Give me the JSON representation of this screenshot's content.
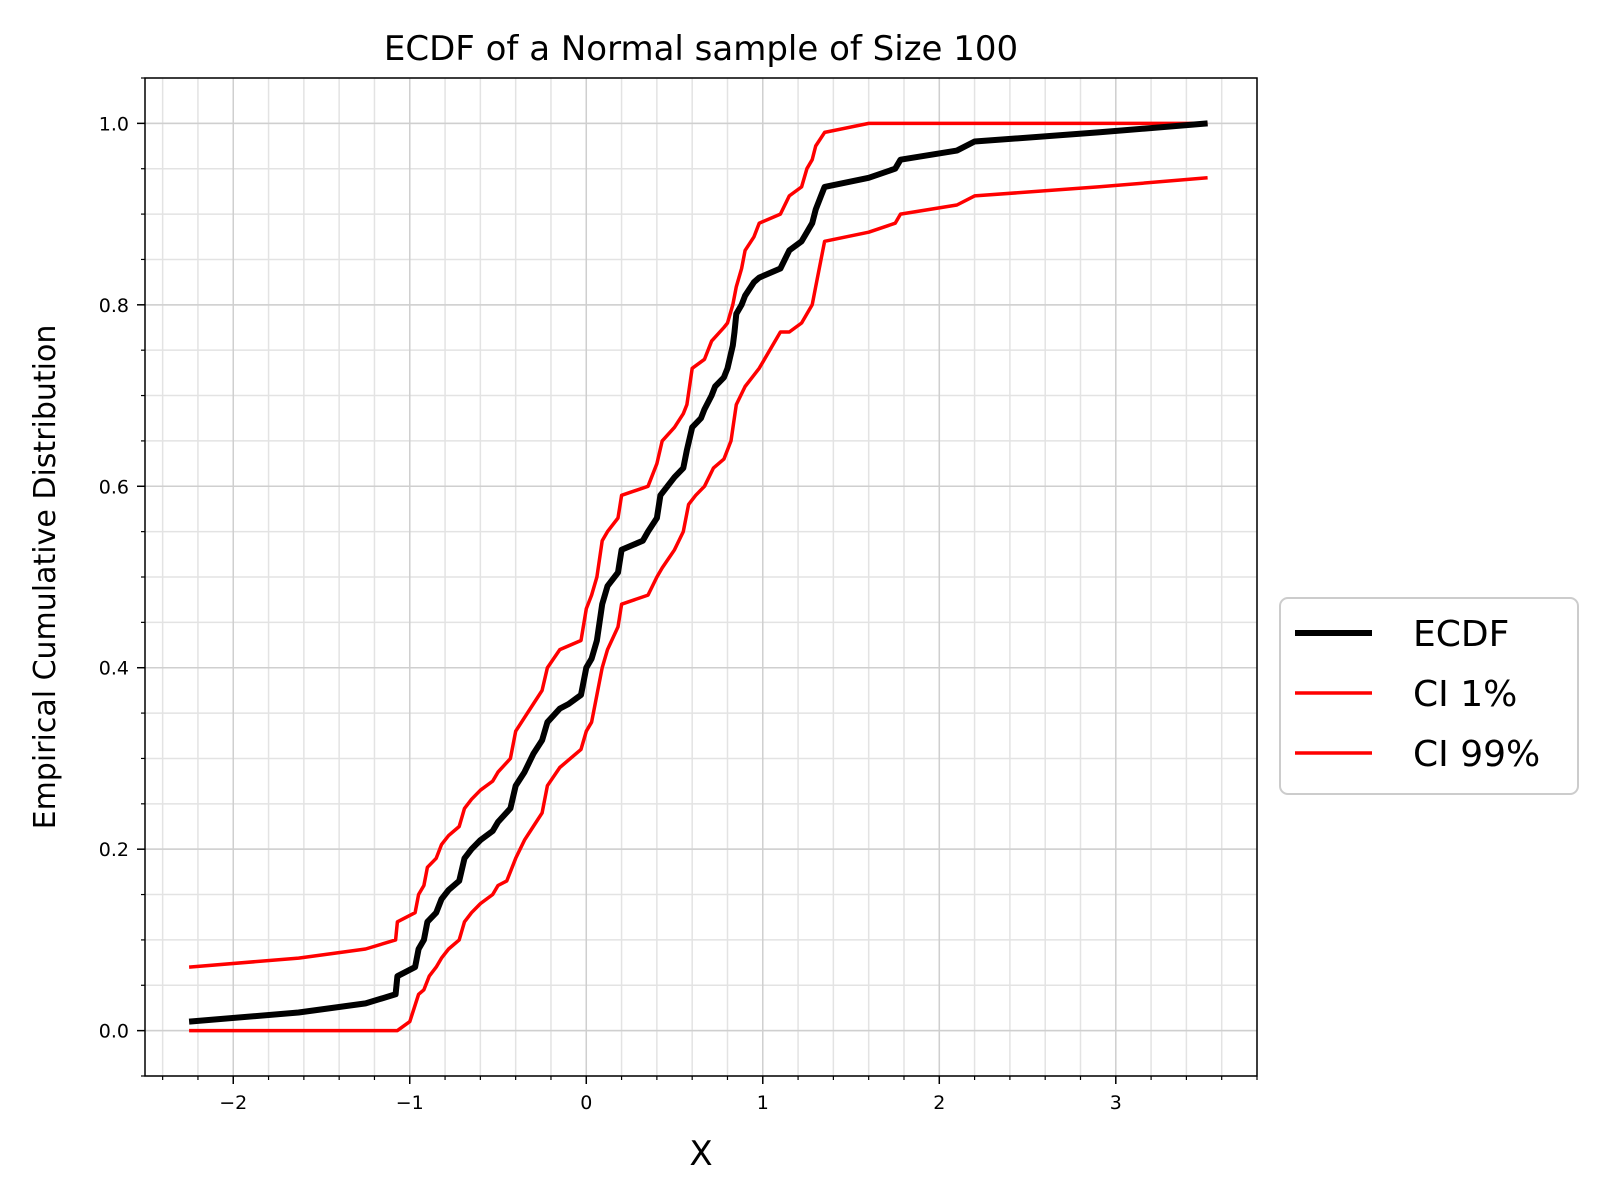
{
  "chart_data": {
    "type": "line",
    "title": "ECDF of a Normal sample of Size 100",
    "xlabel": "X",
    "ylabel": "Empirical Cumulative Distribution",
    "xlim": [
      -2.5,
      3.8
    ],
    "ylim": [
      -0.05,
      1.05
    ],
    "x_ticks": [
      -2,
      -1,
      0,
      1,
      2,
      3
    ],
    "x_tick_labels": [
      "−2",
      "−1",
      "0",
      "1",
      "2",
      "3"
    ],
    "y_ticks": [
      0.0,
      0.2,
      0.4,
      0.6,
      0.8,
      1.0
    ],
    "y_tick_labels": [
      "0.0",
      "0.2",
      "0.4",
      "0.6",
      "0.8",
      "1.0"
    ],
    "grid": "major and minor",
    "legend_placement": "center-right, outside plot",
    "series": [
      {
        "name": "ECDF",
        "color": "#000000",
        "points": [
          [
            -2.25,
            0.01
          ],
          [
            -1.63,
            0.02
          ],
          [
            -1.25,
            0.03
          ],
          [
            -1.08,
            0.04
          ],
          [
            -1.07,
            0.06
          ],
          [
            -0.97,
            0.07
          ],
          [
            -0.95,
            0.09
          ],
          [
            -0.92,
            0.1
          ],
          [
            -0.9,
            0.12
          ],
          [
            -0.85,
            0.13
          ],
          [
            -0.82,
            0.145
          ],
          [
            -0.78,
            0.155
          ],
          [
            -0.72,
            0.165
          ],
          [
            -0.69,
            0.19
          ],
          [
            -0.65,
            0.2
          ],
          [
            -0.6,
            0.21
          ],
          [
            -0.53,
            0.22
          ],
          [
            -0.5,
            0.23
          ],
          [
            -0.43,
            0.245
          ],
          [
            -0.4,
            0.27
          ],
          [
            -0.35,
            0.285
          ],
          [
            -0.3,
            0.305
          ],
          [
            -0.25,
            0.32
          ],
          [
            -0.22,
            0.34
          ],
          [
            -0.15,
            0.355
          ],
          [
            -0.1,
            0.36
          ],
          [
            -0.03,
            0.37
          ],
          [
            0.0,
            0.4
          ],
          [
            0.03,
            0.41
          ],
          [
            0.06,
            0.43
          ],
          [
            0.09,
            0.47
          ],
          [
            0.12,
            0.49
          ],
          [
            0.18,
            0.505
          ],
          [
            0.2,
            0.53
          ],
          [
            0.32,
            0.54
          ],
          [
            0.35,
            0.55
          ],
          [
            0.4,
            0.565
          ],
          [
            0.42,
            0.59
          ],
          [
            0.5,
            0.61
          ],
          [
            0.55,
            0.62
          ],
          [
            0.57,
            0.64
          ],
          [
            0.6,
            0.665
          ],
          [
            0.65,
            0.675
          ],
          [
            0.67,
            0.685
          ],
          [
            0.71,
            0.7
          ],
          [
            0.73,
            0.71
          ],
          [
            0.78,
            0.72
          ],
          [
            0.8,
            0.73
          ],
          [
            0.83,
            0.755
          ],
          [
            0.84,
            0.77
          ],
          [
            0.85,
            0.79
          ],
          [
            0.88,
            0.8
          ],
          [
            0.9,
            0.81
          ],
          [
            0.95,
            0.825
          ],
          [
            0.98,
            0.83
          ],
          [
            1.1,
            0.84
          ],
          [
            1.15,
            0.86
          ],
          [
            1.22,
            0.87
          ],
          [
            1.25,
            0.88
          ],
          [
            1.28,
            0.89
          ],
          [
            1.3,
            0.905
          ],
          [
            1.33,
            0.92
          ],
          [
            1.35,
            0.93
          ],
          [
            1.6,
            0.94
          ],
          [
            1.75,
            0.95
          ],
          [
            1.78,
            0.96
          ],
          [
            2.1,
            0.97
          ],
          [
            2.2,
            0.98
          ],
          [
            2.9,
            0.99
          ],
          [
            3.52,
            1.0
          ]
        ]
      },
      {
        "name": "CI 1%",
        "color": "#ff0000",
        "points": [
          [
            -2.25,
            0.0
          ],
          [
            -1.07,
            0.0
          ],
          [
            -1.0,
            0.01
          ],
          [
            -0.95,
            0.04
          ],
          [
            -0.92,
            0.045
          ],
          [
            -0.89,
            0.06
          ],
          [
            -0.85,
            0.07
          ],
          [
            -0.82,
            0.08
          ],
          [
            -0.78,
            0.09
          ],
          [
            -0.72,
            0.1
          ],
          [
            -0.69,
            0.12
          ],
          [
            -0.65,
            0.13
          ],
          [
            -0.6,
            0.14
          ],
          [
            -0.53,
            0.15
          ],
          [
            -0.5,
            0.16
          ],
          [
            -0.45,
            0.165
          ],
          [
            -0.4,
            0.19
          ],
          [
            -0.35,
            0.21
          ],
          [
            -0.3,
            0.225
          ],
          [
            -0.25,
            0.24
          ],
          [
            -0.22,
            0.27
          ],
          [
            -0.15,
            0.29
          ],
          [
            -0.03,
            0.31
          ],
          [
            0.0,
            0.33
          ],
          [
            0.03,
            0.34
          ],
          [
            0.06,
            0.37
          ],
          [
            0.09,
            0.4
          ],
          [
            0.12,
            0.42
          ],
          [
            0.18,
            0.445
          ],
          [
            0.2,
            0.47
          ],
          [
            0.35,
            0.48
          ],
          [
            0.4,
            0.5
          ],
          [
            0.43,
            0.51
          ],
          [
            0.5,
            0.53
          ],
          [
            0.55,
            0.55
          ],
          [
            0.58,
            0.58
          ],
          [
            0.62,
            0.59
          ],
          [
            0.67,
            0.6
          ],
          [
            0.72,
            0.62
          ],
          [
            0.78,
            0.63
          ],
          [
            0.82,
            0.65
          ],
          [
            0.85,
            0.69
          ],
          [
            0.9,
            0.71
          ],
          [
            0.98,
            0.73
          ],
          [
            1.1,
            0.77
          ],
          [
            1.15,
            0.77
          ],
          [
            1.22,
            0.78
          ],
          [
            1.25,
            0.79
          ],
          [
            1.28,
            0.8
          ],
          [
            1.3,
            0.82
          ],
          [
            1.35,
            0.87
          ],
          [
            1.6,
            0.88
          ],
          [
            1.75,
            0.89
          ],
          [
            1.78,
            0.9
          ],
          [
            2.1,
            0.91
          ],
          [
            2.2,
            0.92
          ],
          [
            2.9,
            0.93
          ],
          [
            3.52,
            0.94
          ]
        ]
      },
      {
        "name": "CI 99%",
        "color": "#ff0000",
        "points": [
          [
            -2.25,
            0.07
          ],
          [
            -1.63,
            0.08
          ],
          [
            -1.25,
            0.09
          ],
          [
            -1.08,
            0.1
          ],
          [
            -1.07,
            0.12
          ],
          [
            -0.97,
            0.13
          ],
          [
            -0.95,
            0.15
          ],
          [
            -0.92,
            0.16
          ],
          [
            -0.9,
            0.18
          ],
          [
            -0.85,
            0.19
          ],
          [
            -0.82,
            0.205
          ],
          [
            -0.78,
            0.215
          ],
          [
            -0.72,
            0.225
          ],
          [
            -0.69,
            0.245
          ],
          [
            -0.65,
            0.255
          ],
          [
            -0.6,
            0.265
          ],
          [
            -0.53,
            0.275
          ],
          [
            -0.5,
            0.285
          ],
          [
            -0.43,
            0.3
          ],
          [
            -0.4,
            0.33
          ],
          [
            -0.35,
            0.345
          ],
          [
            -0.3,
            0.36
          ],
          [
            -0.25,
            0.375
          ],
          [
            -0.22,
            0.4
          ],
          [
            -0.15,
            0.42
          ],
          [
            -0.03,
            0.43
          ],
          [
            0.0,
            0.465
          ],
          [
            0.03,
            0.48
          ],
          [
            0.06,
            0.5
          ],
          [
            0.09,
            0.54
          ],
          [
            0.12,
            0.55
          ],
          [
            0.18,
            0.565
          ],
          [
            0.2,
            0.59
          ],
          [
            0.35,
            0.6
          ],
          [
            0.4,
            0.625
          ],
          [
            0.43,
            0.65
          ],
          [
            0.5,
            0.665
          ],
          [
            0.55,
            0.68
          ],
          [
            0.57,
            0.69
          ],
          [
            0.6,
            0.73
          ],
          [
            0.67,
            0.74
          ],
          [
            0.71,
            0.76
          ],
          [
            0.78,
            0.775
          ],
          [
            0.8,
            0.78
          ],
          [
            0.83,
            0.8
          ],
          [
            0.85,
            0.82
          ],
          [
            0.88,
            0.84
          ],
          [
            0.9,
            0.86
          ],
          [
            0.95,
            0.875
          ],
          [
            0.98,
            0.89
          ],
          [
            1.1,
            0.9
          ],
          [
            1.15,
            0.92
          ],
          [
            1.22,
            0.93
          ],
          [
            1.25,
            0.95
          ],
          [
            1.28,
            0.96
          ],
          [
            1.3,
            0.975
          ],
          [
            1.35,
            0.99
          ],
          [
            1.6,
            1.0
          ],
          [
            3.52,
            1.0
          ]
        ]
      }
    ]
  }
}
